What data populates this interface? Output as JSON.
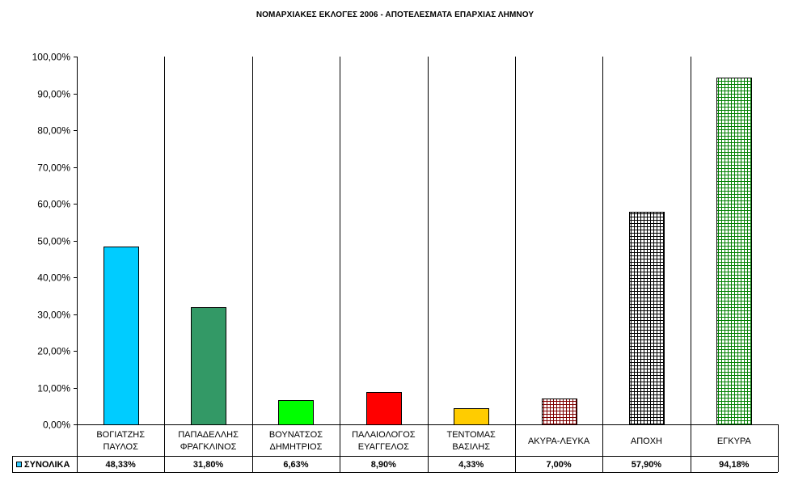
{
  "chart_data": {
    "type": "bar",
    "title": "ΝΟΜΑΡΧΙΑΚΕΣ ΕΚΛΟΓΕΣ 2006 - ΑΠΟΤΕΛΕΣΜΑΤΑ ΕΠΑΡΧΙΑΣ ΛΗΜΝΟΥ",
    "categories": [
      [
        "ΒΟΓΙΑΤΖΗΣ",
        "ΠΑΥΛΟΣ"
      ],
      [
        "ΠΑΠΑΔΕΛΛΗΣ",
        "ΦΡΑΓΚΛΙΝΟΣ"
      ],
      [
        "ΒΟΥΝΑΤΣΟΣ",
        "ΔΗΜΗΤΡΙΟΣ"
      ],
      [
        "ΠΑΛΑΙΟΛΟΓΟΣ",
        "ΕΥΑΓΓΕΛΟΣ"
      ],
      [
        "ΤΕΝΤΟΜΑΣ",
        "ΒΑΣΙΛΗΣ"
      ],
      [
        "ΑΚΥΡΑ-ΛΕΥΚΑ"
      ],
      [
        "ΑΠΟΧΗ"
      ],
      [
        "ΕΓΚΥΡΑ"
      ]
    ],
    "series": [
      {
        "name": "ΣΥΝΟΛΙΚΑ",
        "values": [
          48.33,
          31.8,
          6.63,
          8.9,
          4.33,
          7.0,
          57.9,
          94.18
        ],
        "value_labels": [
          "48,33%",
          "31,80%",
          "6,63%",
          "8,90%",
          "4,33%",
          "7,00%",
          "57,90%",
          "94,18%"
        ]
      }
    ],
    "bar_styles": [
      {
        "fill": "#00ccff",
        "pattern": "solid"
      },
      {
        "fill": "#339966",
        "pattern": "solid"
      },
      {
        "fill": "#00ff00",
        "pattern": "solid"
      },
      {
        "fill": "#ff0000",
        "pattern": "solid"
      },
      {
        "fill": "#ffcc00",
        "pattern": "solid"
      },
      {
        "fill": "#800000",
        "pattern": "grid"
      },
      {
        "fill": "#000000",
        "pattern": "grid"
      },
      {
        "fill": "#008000",
        "pattern": "grid"
      }
    ],
    "ylim": [
      0,
      100
    ],
    "yticks": [
      "0,00%",
      "10,00%",
      "20,00%",
      "30,00%",
      "40,00%",
      "50,00%",
      "60,00%",
      "70,00%",
      "80,00%",
      "90,00%",
      "100,00%"
    ],
    "xlabel": "",
    "ylabel": "",
    "grid": "vertical category dividers",
    "legend": "data table below chart",
    "legend_swatch_color": "#33ccff"
  }
}
